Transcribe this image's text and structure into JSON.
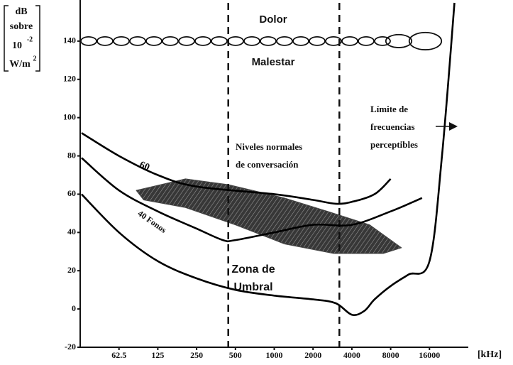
{
  "chart_data": {
    "type": "line",
    "y_label": {
      "line1": "dB",
      "line2": "sobre",
      "base": "10",
      "exp": "-2",
      "unit": "W/m",
      "unit_exp": "2"
    },
    "x_label": "[kHz]",
    "xscale": "log",
    "xlim": [
      31.25,
      32000
    ],
    "xticks": [
      62.5,
      125,
      250,
      500,
      1000,
      2000,
      4000,
      8000,
      16000
    ],
    "ylim": [
      -20,
      160
    ],
    "yticks": [
      -20,
      0,
      20,
      40,
      60,
      80,
      100,
      120,
      140
    ],
    "series": [
      {
        "color": "#000000",
        "x": [
          32,
          62.5,
          125,
          250,
          500,
          1000,
          2000,
          3000,
          4000,
          5000,
          6000,
          8000,
          11000,
          16000,
          20000,
          25000
        ],
        "values": [
          60,
          40,
          25,
          16,
          10,
          7,
          5,
          3,
          -3,
          -1,
          5,
          12,
          18,
          25,
          80,
          160
        ]
      },
      {
        "name": "40 Fonos",
        "color": "#000000",
        "x": [
          32,
          62.5,
          125,
          250,
          400,
          500,
          1000,
          2000,
          4000,
          8000,
          12000,
          14000
        ],
        "values": [
          79,
          62,
          51,
          42,
          36,
          36,
          40,
          44,
          44,
          51,
          56,
          58
        ]
      },
      {
        "name": "60",
        "color": "#000000",
        "x": [
          32,
          62.5,
          125,
          250,
          1000,
          2000,
          3000,
          4000,
          6000,
          8000
        ],
        "values": [
          92,
          80,
          70,
          64,
          60,
          57,
          55,
          56,
          60,
          68
        ]
      }
    ],
    "pain_level": 140,
    "speech_band": [
      440,
      3200
    ],
    "conversation_region": {
      "x": [
        85,
        205,
        440,
        1200,
        2600,
        5500,
        9700,
        7000,
        2900,
        1200,
        500,
        205,
        97
      ],
      "y": [
        62,
        68,
        65,
        58,
        51,
        44,
        32,
        29,
        29,
        34,
        44,
        53,
        57
      ]
    },
    "annotations": {
      "pain": "Dolor",
      "discomfort": "Malestar",
      "limit": [
        "Límite de",
        "frecuencias",
        "perceptibles"
      ],
      "conversation": [
        "Niveles normales",
        "de conversación"
      ],
      "threshold": [
        "Zona de",
        "Umbral"
      ]
    }
  }
}
